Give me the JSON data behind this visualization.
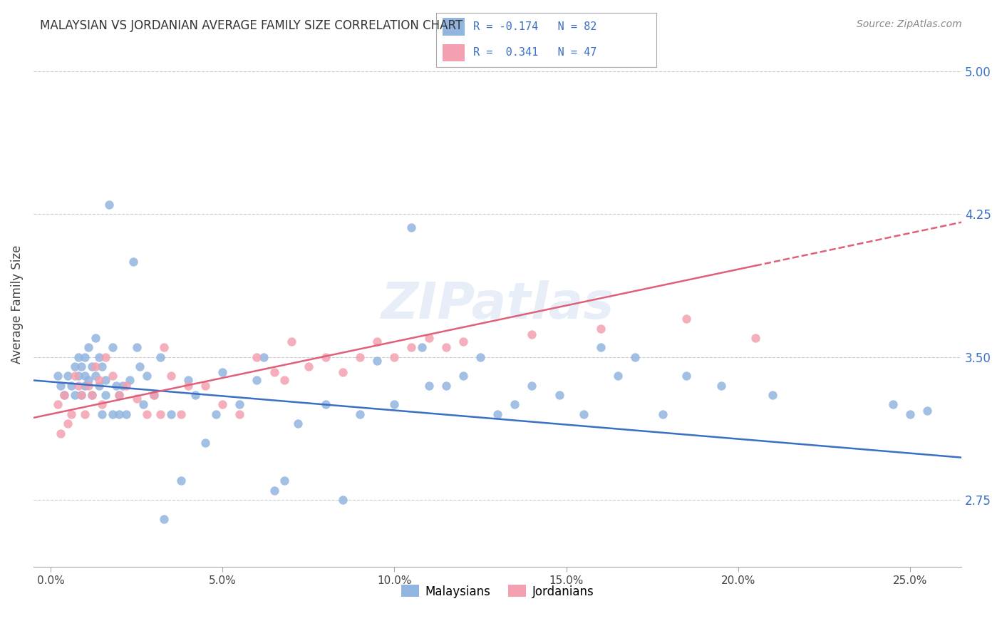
{
  "title": "MALAYSIAN VS JORDANIAN AVERAGE FAMILY SIZE CORRELATION CHART",
  "source": "Source: ZipAtlas.com",
  "ylabel": "Average Family Size",
  "xlabel_ticks": [
    "0.0%",
    "5.0%",
    "10.0%",
    "15.0%",
    "20.0%",
    "25.0%"
  ],
  "xlabel_vals": [
    0.0,
    0.05,
    0.1,
    0.15,
    0.2,
    0.25
  ],
  "ylim": [
    2.4,
    5.15
  ],
  "xlim": [
    -0.005,
    0.265
  ],
  "yticks": [
    2.75,
    3.5,
    4.25,
    5.0
  ],
  "ytick_labels": [
    "2.75",
    "3.50",
    "4.25",
    "5.00"
  ],
  "blue_color": "#92b4e0",
  "pink_color": "#f4a0b0",
  "blue_line_color": "#3a6fc4",
  "pink_line_color": "#e0607a",
  "blue_dot_color": "#92b4e0",
  "pink_dot_color": "#f4a0b0",
  "watermark": "ZIPatlas",
  "legend_r_blue": "R = -0.174",
  "legend_n_blue": "N = 82",
  "legend_r_pink": "R =  0.341",
  "legend_n_pink": "N = 47",
  "legend_label_blue": "Malaysians",
  "legend_label_pink": "Jordanians",
  "blue_intercept": 3.37,
  "blue_slope": -1.5,
  "pink_intercept": 3.2,
  "pink_slope": 3.8,
  "malaysian_x": [
    0.002,
    0.003,
    0.004,
    0.005,
    0.006,
    0.007,
    0.007,
    0.008,
    0.008,
    0.009,
    0.009,
    0.01,
    0.01,
    0.01,
    0.011,
    0.011,
    0.012,
    0.012,
    0.013,
    0.013,
    0.014,
    0.014,
    0.015,
    0.015,
    0.016,
    0.016,
    0.017,
    0.018,
    0.018,
    0.019,
    0.02,
    0.02,
    0.021,
    0.022,
    0.023,
    0.024,
    0.025,
    0.026,
    0.027,
    0.028,
    0.03,
    0.032,
    0.033,
    0.035,
    0.038,
    0.04,
    0.042,
    0.045,
    0.048,
    0.05,
    0.055,
    0.06,
    0.062,
    0.065,
    0.068,
    0.072,
    0.08,
    0.085,
    0.09,
    0.095,
    0.1,
    0.105,
    0.108,
    0.11,
    0.115,
    0.12,
    0.125,
    0.13,
    0.135,
    0.14,
    0.148,
    0.155,
    0.16,
    0.165,
    0.17,
    0.178,
    0.185,
    0.195,
    0.21,
    0.245,
    0.25,
    0.255
  ],
  "malaysian_y": [
    3.4,
    3.35,
    3.3,
    3.4,
    3.35,
    3.45,
    3.3,
    3.4,
    3.5,
    3.3,
    3.45,
    3.4,
    3.35,
    3.5,
    3.38,
    3.55,
    3.45,
    3.3,
    3.4,
    3.6,
    3.35,
    3.5,
    3.2,
    3.45,
    3.38,
    3.3,
    4.3,
    3.55,
    3.2,
    3.35,
    3.2,
    3.3,
    3.35,
    3.2,
    3.38,
    4.0,
    3.55,
    3.45,
    3.25,
    3.4,
    3.3,
    3.5,
    2.65,
    3.2,
    2.85,
    3.38,
    3.3,
    3.05,
    3.2,
    3.42,
    3.25,
    3.38,
    3.5,
    2.8,
    2.85,
    3.15,
    3.25,
    2.75,
    3.2,
    3.48,
    3.25,
    4.18,
    3.55,
    3.35,
    3.35,
    3.4,
    3.5,
    3.2,
    3.25,
    3.35,
    3.3,
    3.2,
    3.55,
    3.4,
    3.5,
    3.2,
    3.4,
    3.35,
    3.3,
    3.25,
    3.2,
    3.22
  ],
  "jordanian_x": [
    0.002,
    0.003,
    0.004,
    0.005,
    0.006,
    0.007,
    0.008,
    0.009,
    0.01,
    0.011,
    0.012,
    0.013,
    0.014,
    0.015,
    0.016,
    0.018,
    0.02,
    0.022,
    0.025,
    0.028,
    0.03,
    0.032,
    0.033,
    0.035,
    0.038,
    0.04,
    0.045,
    0.05,
    0.055,
    0.06,
    0.065,
    0.068,
    0.07,
    0.075,
    0.08,
    0.085,
    0.09,
    0.095,
    0.1,
    0.105,
    0.11,
    0.115,
    0.12,
    0.14,
    0.16,
    0.185,
    0.205
  ],
  "jordanian_y": [
    3.25,
    3.1,
    3.3,
    3.15,
    3.2,
    3.4,
    3.35,
    3.3,
    3.2,
    3.35,
    3.3,
    3.45,
    3.38,
    3.25,
    3.5,
    3.4,
    3.3,
    3.35,
    3.28,
    3.2,
    3.3,
    3.2,
    3.55,
    3.4,
    3.2,
    3.35,
    3.35,
    3.25,
    3.2,
    3.5,
    3.42,
    3.38,
    3.58,
    3.45,
    3.5,
    3.42,
    3.5,
    3.58,
    3.5,
    3.55,
    3.6,
    3.55,
    3.58,
    3.62,
    3.65,
    3.7,
    3.6
  ]
}
